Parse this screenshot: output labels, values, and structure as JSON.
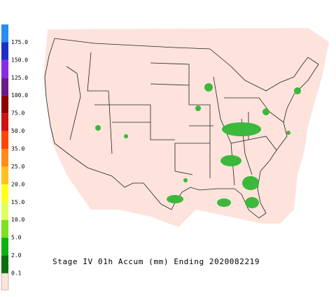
{
  "legend": {
    "items": [
      {
        "label": "175.0",
        "color": "#2a8cf0"
      },
      {
        "label": "150.0",
        "color": "#1c2fc8"
      },
      {
        "label": "125.0",
        "color": "#8a2be2"
      },
      {
        "label": "100.0",
        "color": "#6a1a8a"
      },
      {
        "label": "75.0",
        "color": "#8b0000"
      },
      {
        "label": "50.0",
        "color": "#d01010"
      },
      {
        "label": "35.0",
        "color": "#ff4500"
      },
      {
        "label": "25.0",
        "color": "#ff8c1a"
      },
      {
        "label": "20.0",
        "color": "#ffc020"
      },
      {
        "label": "15.0",
        "color": "#ffff20"
      },
      {
        "label": "10.0",
        "color": "#e0ff60"
      },
      {
        "label": "5.0",
        "color": "#7ee020"
      },
      {
        "label": "2.0",
        "color": "#10b010"
      },
      {
        "label": "0.1",
        "color": "#0a6e0a"
      }
    ]
  },
  "caption": "Stage IV 01h Accum (mm) Ending 2020082219"
}
